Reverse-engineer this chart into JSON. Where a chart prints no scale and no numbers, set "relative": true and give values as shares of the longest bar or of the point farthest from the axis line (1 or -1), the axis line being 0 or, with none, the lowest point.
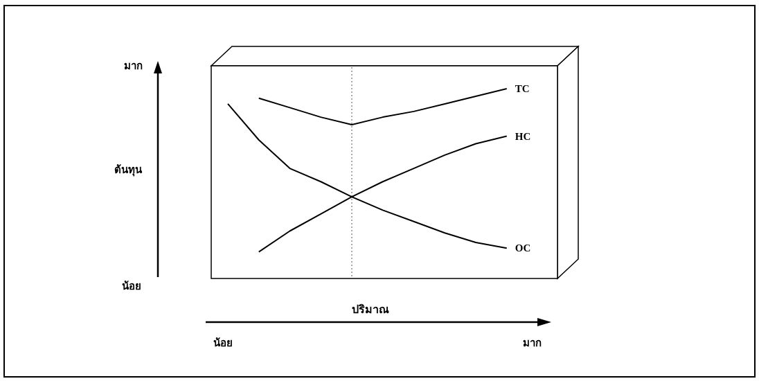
{
  "chart_data": {
    "type": "line",
    "relative": true,
    "xlabel": "ปริมาณ",
    "categories": [
      null,
      null,
      null,
      null,
      null,
      null,
      null,
      null,
      null,
      null
    ],
    "series": [
      {
        "name": "TC",
        "color": "#000000",
        "values": [
          null,
          0.95,
          0.9,
          0.85,
          0.81,
          0.85,
          0.88,
          0.92,
          0.96,
          1
        ]
      },
      {
        "name": "HC",
        "color": "#000000",
        "values": [
          null,
          0.14,
          0.25,
          0.34,
          0.43,
          0.51,
          0.58,
          0.65,
          0.71,
          0.75
        ]
      },
      {
        "name": "OC",
        "color": "#000000",
        "values": [
          0.92,
          0.73,
          0.58,
          0.51,
          0.43,
          0.36,
          0.3,
          0.24,
          0.19,
          0.16
        ]
      }
    ],
    "annotations": [
      "ต้นทุน",
      "มาก",
      "น้อย",
      "น้อย",
      "มาก"
    ],
    "legend": false,
    "marker": "none",
    "line_style": "solid"
  }
}
